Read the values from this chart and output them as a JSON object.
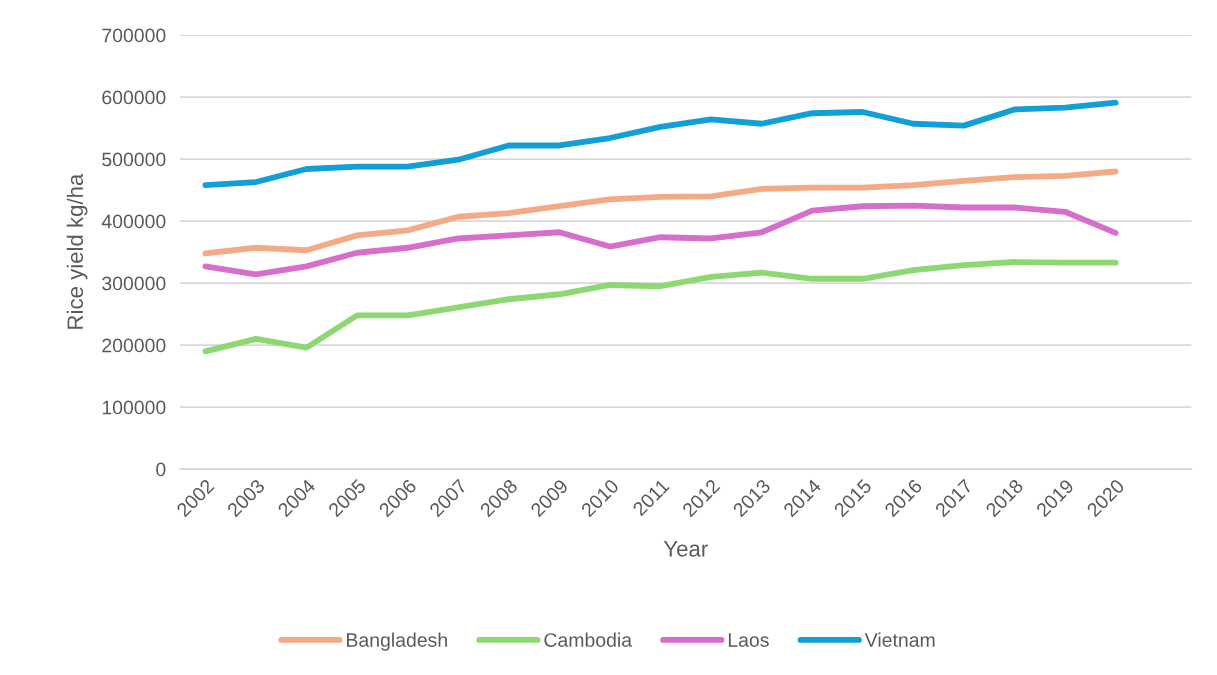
{
  "chart_data": {
    "type": "line",
    "xlabel": "Year",
    "ylabel": "Rice yield kg/ha",
    "categories": [
      "2002",
      "2003",
      "2004",
      "2005",
      "2006",
      "2007",
      "2008",
      "2009",
      "2010",
      "2011",
      "2012",
      "2013",
      "2014",
      "2015",
      "2016",
      "2017",
      "2018",
      "2019",
      "2020",
      null
    ],
    "series": [
      {
        "name": "Bangladesh",
        "color": "#f4aa85",
        "values": [
          348000,
          357000,
          353000,
          377000,
          385000,
          407000,
          413000,
          424000,
          435000,
          439000,
          440000,
          452000,
          454000,
          454000,
          458000,
          465000,
          471000,
          473000,
          480000,
          null
        ]
      },
      {
        "name": "Cambodia",
        "color": "#8ed873",
        "values": [
          190000,
          210000,
          196000,
          248000,
          248000,
          261000,
          274000,
          282000,
          297000,
          295000,
          310000,
          317000,
          307000,
          307000,
          321000,
          329000,
          334000,
          333000,
          333000,
          null
        ]
      },
      {
        "name": "Laos",
        "color": "#d86ecc",
        "values": [
          327000,
          314000,
          327000,
          349000,
          357000,
          372000,
          377000,
          382000,
          359000,
          374000,
          372000,
          382000,
          417000,
          424000,
          425000,
          422000,
          422000,
          415000,
          381000,
          null
        ]
      },
      {
        "name": "Vietnam",
        "color": "#129fd5",
        "values": [
          458000,
          463000,
          484000,
          488000,
          488000,
          499000,
          522000,
          522000,
          534000,
          552000,
          564000,
          557000,
          574000,
          576000,
          557000,
          554000,
          580000,
          583000,
          591000,
          null
        ]
      }
    ],
    "ylim": [
      0,
      700000
    ],
    "yticks": [
      0,
      100000,
      200000,
      300000,
      400000,
      500000,
      600000,
      700000
    ],
    "grid": "y",
    "legend": "bottom",
    "marker": "none",
    "line_style": "solid"
  }
}
